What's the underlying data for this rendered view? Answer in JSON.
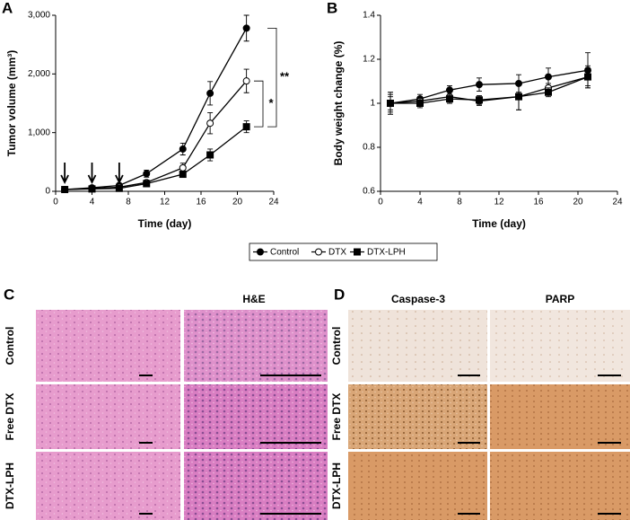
{
  "chart_data": [
    {
      "type": "line",
      "label": "A",
      "ylabel": "Tumor volume (mm³)",
      "xlabel": "Time (day)",
      "xlim": [
        0,
        24
      ],
      "xticks": [
        0,
        4,
        8,
        12,
        16,
        20,
        24
      ],
      "ylim": [
        0,
        3000
      ],
      "yticks": [
        0,
        {
          "value": 1000,
          "label": "1,000"
        },
        {
          "value": 2000,
          "label": "2,000"
        },
        {
          "value": 3000,
          "label": "3,000"
        }
      ],
      "x": [
        1,
        4,
        7,
        10,
        14,
        17,
        21
      ],
      "series": [
        {
          "name": "Control",
          "color": "#000000",
          "marker": "circle",
          "values": [
            30,
            60,
            100,
            300,
            720,
            1670,
            2780
          ],
          "errors": [
            15,
            20,
            30,
            60,
            100,
            200,
            220
          ]
        },
        {
          "name": "DTX",
          "color": "#000000",
          "marker": "open-circle",
          "values": [
            30,
            50,
            70,
            150,
            400,
            1160,
            1880
          ],
          "errors": [
            15,
            15,
            20,
            40,
            80,
            180,
            200
          ]
        },
        {
          "name": "DTX-LPH",
          "color": "#000000",
          "marker": "square",
          "values": [
            30,
            40,
            50,
            130,
            290,
            620,
            1100
          ],
          "errors": [
            10,
            15,
            20,
            30,
            50,
            100,
            100
          ]
        }
      ],
      "treatment_days": [
        1,
        4,
        7
      ],
      "annotations": [
        "**",
        "*"
      ]
    },
    {
      "type": "line",
      "label": "B",
      "ylabel": "Body weight change (%)",
      "xlabel": "Time (day)",
      "xlim": [
        0,
        24
      ],
      "xticks": [
        0,
        4,
        8,
        12,
        16,
        20,
        24
      ],
      "ylim": [
        0.6,
        1.4
      ],
      "yticks": [
        0.6,
        0.8,
        1,
        1.2,
        1.4
      ],
      "x": [
        1,
        4,
        7,
        10,
        14,
        17,
        21
      ],
      "series": [
        {
          "name": "Control",
          "color": "#000000",
          "marker": "circle",
          "values": [
            1,
            1.02,
            1.06,
            1.085,
            1.09,
            1.12,
            1.15
          ],
          "errors": [
            0.05,
            0.02,
            0.02,
            0.03,
            0.04,
            0.04,
            0.08
          ]
        },
        {
          "name": "DTX",
          "color": "#000000",
          "marker": "open-circle",
          "values": [
            1,
            1.01,
            1.03,
            1.01,
            1.03,
            1.07,
            1.12
          ],
          "errors": [
            0.04,
            0.02,
            0.02,
            0.02,
            0.06,
            0.02,
            0.04
          ]
        },
        {
          "name": "DTX-LPH",
          "color": "#000000",
          "marker": "square",
          "values": [
            1,
            1,
            1.02,
            1.015,
            1.03,
            1.05,
            1.12
          ],
          "errors": [
            0.03,
            0.02,
            0.02,
            0.02,
            0.06,
            0.02,
            0.05
          ]
        }
      ]
    }
  ],
  "panels": {
    "C": {
      "label": "C",
      "columns": [
        "H&E"
      ],
      "rows": [
        "Control",
        "Free DTX",
        "DTX-LPH"
      ]
    },
    "D": {
      "label": "D",
      "columns": [
        "Caspase-3",
        "PARP"
      ],
      "rows": [
        "Control",
        "Free DTX",
        "DTX-LPH"
      ]
    }
  }
}
